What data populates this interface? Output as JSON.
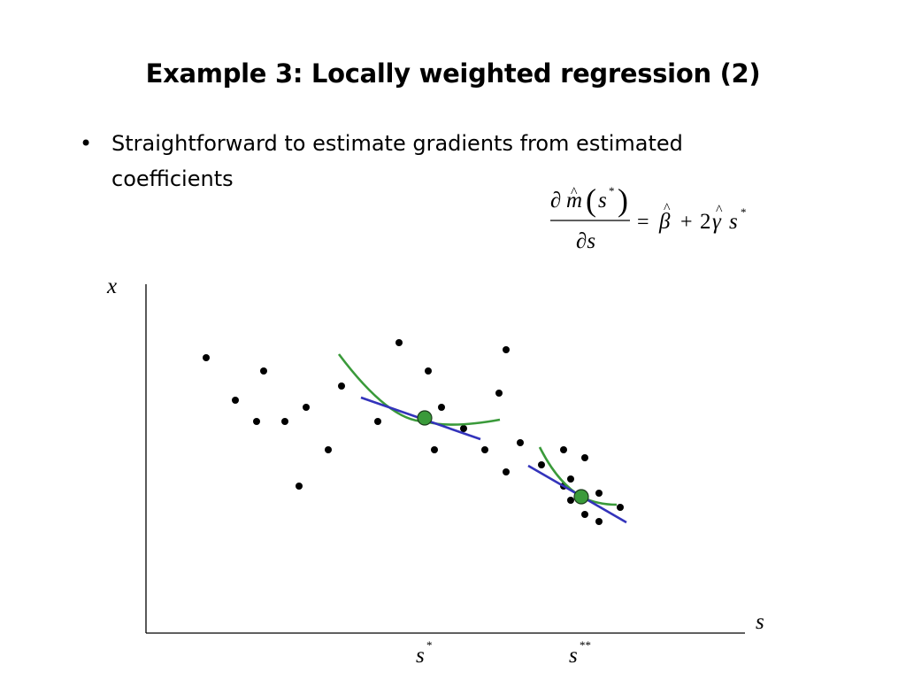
{
  "slide": {
    "title": "Example 3: Locally weighted regression (2)",
    "bullet": "Straightforward to estimate gradients from estimated coefficients",
    "bullet_mark": "•"
  },
  "formula": {
    "numerator_partial": "∂",
    "numerator_m": "m",
    "numerator_hat": "^",
    "numerator_open_paren": "(",
    "numerator_s": "s",
    "numerator_star": "*",
    "numerator_close_paren": ")",
    "denominator": "∂s",
    "equals": "=",
    "beta": "β",
    "beta_hat": "^",
    "plus": "+",
    "two": "2",
    "gamma": "γ",
    "gamma_hat": "^",
    "s": "s",
    "s_star": "*"
  },
  "axes": {
    "y_label": "x",
    "x_label": "s"
  },
  "markers": [
    {
      "base": "s",
      "superscript": "*"
    },
    {
      "base": "s",
      "superscript": "**"
    }
  ],
  "colors": {
    "points": "#000000",
    "axes": "#000000",
    "local_fit_curve": "#3a9a3a",
    "tangent_line": "#3333bb",
    "estimate_point_fill": "#3a9a3a"
  }
}
